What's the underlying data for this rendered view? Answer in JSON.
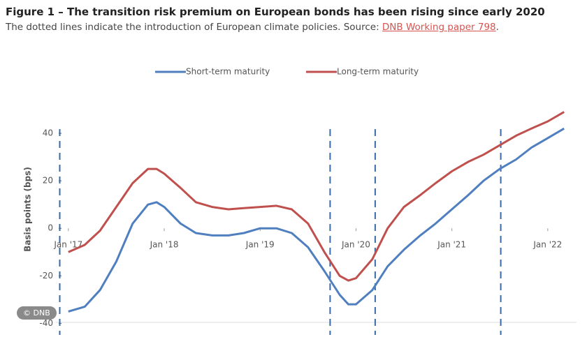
{
  "chart_data": {
    "type": "line",
    "title": "Figure 1 – The transition risk premium on European bonds has been rising since early 2020",
    "subtitle": "The dotted lines indicate the introduction of European climate policies.  Source: ",
    "source_link": "DNB Working paper 798",
    "subtitle_end": ".",
    "ylabel": "Basis points (bps)",
    "credit": "© DNB",
    "x": [
      2017.0,
      2017.17,
      2017.33,
      2017.5,
      2017.67,
      2017.83,
      2017.92,
      2018.0,
      2018.17,
      2018.33,
      2018.5,
      2018.67,
      2018.83,
      2019.0,
      2019.17,
      2019.33,
      2019.5,
      2019.67,
      2019.83,
      2019.92,
      2020.0,
      2020.17,
      2020.33,
      2020.5,
      2020.67,
      2020.83,
      2021.0,
      2021.17,
      2021.33,
      2021.5,
      2021.67,
      2021.83,
      2022.0,
      2022.17
    ],
    "series": [
      {
        "name": "Short-term maturity",
        "color": "#4f7fbf",
        "values": [
          -35,
          -33,
          -26,
          -14,
          2,
          10,
          11,
          9,
          2,
          -2,
          -3,
          -3,
          -2,
          0,
          0,
          -2,
          -8,
          -18,
          -28,
          -32,
          -32,
          -26,
          -16,
          -9,
          -3,
          2,
          8,
          14,
          20,
          25,
          29,
          34,
          38,
          42
        ]
      },
      {
        "name": "Long-term maturity",
        "color": "#c0504d",
        "values": [
          -10,
          -7,
          -1,
          9,
          19,
          25,
          25,
          23,
          17,
          11,
          9,
          8,
          8.5,
          9,
          9.5,
          8,
          2,
          -10,
          -20,
          -22,
          -21,
          -13,
          0,
          9,
          14,
          19,
          24,
          28,
          31,
          35,
          39,
          42,
          45,
          49
        ]
      }
    ],
    "policy_lines": [
      2016.91,
      2019.73,
      2020.2,
      2021.51
    ],
    "xlim": [
      2016.87,
      2022.3
    ],
    "xticks": [
      {
        "value": 2017,
        "label": "Jan '17"
      },
      {
        "value": 2018,
        "label": "Jan '18"
      },
      {
        "value": 2019,
        "label": "Jan '19"
      },
      {
        "value": 2020,
        "label": "Jan '20"
      },
      {
        "value": 2021,
        "label": "Jan '21"
      },
      {
        "value": 2022,
        "label": "Jan '22"
      }
    ],
    "ylim": [
      -44,
      50
    ],
    "yticks": [
      40,
      20,
      0,
      -20,
      -40
    ],
    "legend": "top"
  }
}
